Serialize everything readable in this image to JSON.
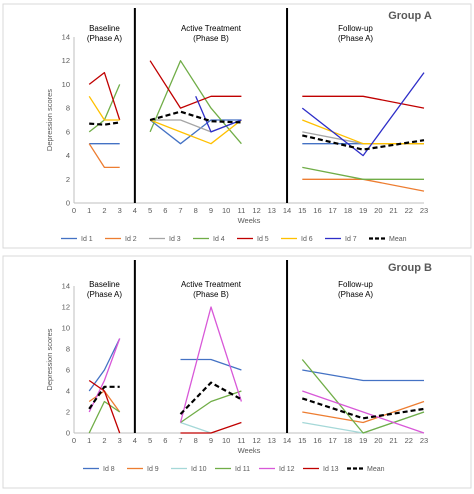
{
  "chart_data": [
    {
      "type": "line",
      "title": "Group A",
      "ylabel": "Depression scores",
      "xlabel": "Weeks",
      "ylim": [
        0,
        14
      ],
      "yticks": [
        "0",
        "2",
        "4",
        "6",
        "8",
        "10",
        "12",
        "14"
      ],
      "xlim": [
        0,
        23
      ],
      "xticks": [
        "0",
        "1",
        "2",
        "3",
        "4",
        "5",
        "6",
        "7",
        "8",
        "9",
        "10",
        "11",
        "12",
        "13",
        "14",
        "15",
        "16",
        "17",
        "18",
        "19",
        "20",
        "21",
        "22",
        "23"
      ],
      "phase_lines": [
        4,
        14
      ],
      "phases": [
        {
          "line1": "Baseline",
          "line2": "(Phase A)",
          "x": 2
        },
        {
          "line1": "Active Treatment",
          "line2": "(Phase B)",
          "x": 9
        },
        {
          "line1": "Follow-up",
          "line2": "(Phase A)",
          "x": 18.5
        }
      ],
      "grid": false,
      "legend_position": "bottom",
      "series": [
        {
          "name": "Id 1",
          "color": "#4472c4",
          "dashed": false,
          "segments": [
            [
              [
                1,
                5
              ],
              [
                2,
                5
              ],
              [
                3,
                5
              ]
            ],
            [
              [
                5,
                7
              ],
              [
                7,
                5
              ],
              [
                9,
                7
              ],
              [
                11,
                7
              ]
            ],
            [
              [
                15,
                5
              ],
              [
                19,
                5
              ],
              [
                23,
                5
              ]
            ]
          ]
        },
        {
          "name": "Id 2",
          "color": "#ed7d31",
          "dashed": false,
          "segments": [
            [
              [
                1,
                5
              ],
              [
                2,
                3
              ],
              [
                3,
                3
              ]
            ],
            [],
            [
              [
                15,
                2
              ],
              [
                19,
                2
              ],
              [
                23,
                1
              ]
            ]
          ]
        },
        {
          "name": "Id 3",
          "color": "#a5a5a5",
          "dashed": false,
          "segments": [
            [],
            [
              [
                5,
                7
              ],
              [
                7,
                7
              ],
              [
                9,
                6
              ],
              [
                11,
                7
              ]
            ],
            [
              [
                15,
                6
              ],
              [
                19,
                5
              ],
              [
                23,
                5
              ]
            ]
          ]
        },
        {
          "name": "Id 4",
          "color": "#70ad47",
          "dashed": false,
          "segments": [
            [
              [
                1,
                6
              ],
              [
                2,
                7
              ],
              [
                3,
                10
              ]
            ],
            [
              [
                5,
                6
              ],
              [
                7,
                12
              ],
              [
                9,
                8
              ],
              [
                11,
                5
              ]
            ],
            [
              [
                15,
                3
              ],
              [
                19,
                2
              ],
              [
                23,
                2
              ]
            ]
          ]
        },
        {
          "name": "Id 5",
          "color": "#c00000",
          "dashed": false,
          "segments": [
            [
              [
                1,
                10
              ],
              [
                2,
                11
              ],
              [
                3,
                7
              ]
            ],
            [
              [
                5,
                12
              ],
              [
                7,
                8
              ],
              [
                9,
                9
              ],
              [
                11,
                9
              ]
            ],
            [
              [
                15,
                9
              ],
              [
                19,
                9
              ],
              [
                23,
                8
              ]
            ]
          ]
        },
        {
          "name": "Id 6",
          "color": "#ffc000",
          "dashed": false,
          "segments": [
            [
              [
                1,
                9
              ],
              [
                2,
                7
              ],
              [
                3,
                7
              ]
            ],
            [
              [
                5,
                7
              ],
              [
                7,
                6
              ],
              [
                9,
                5
              ],
              [
                11,
                7
              ]
            ],
            [
              [
                15,
                7
              ],
              [
                19,
                5
              ],
              [
                23,
                5
              ]
            ]
          ]
        },
        {
          "name": "Id 7",
          "color": "#2e2ec8",
          "dashed": false,
          "segments": [
            [],
            [
              [
                8,
                9
              ],
              [
                9,
                6
              ],
              [
                11,
                7
              ]
            ],
            [
              [
                15,
                8
              ],
              [
                19,
                4
              ],
              [
                23,
                11
              ]
            ]
          ]
        },
        {
          "name": "Mean",
          "color": "#000000",
          "dashed": true,
          "segments": [
            [
              [
                1,
                6.7
              ],
              [
                2,
                6.6
              ],
              [
                3,
                6.8
              ]
            ],
            [
              [
                5,
                7
              ],
              [
                7,
                7.7
              ],
              [
                9,
                6.9
              ],
              [
                11,
                6.8
              ]
            ],
            [
              [
                15,
                5.7
              ],
              [
                19,
                4.5
              ],
              [
                23,
                5.3
              ]
            ]
          ]
        }
      ]
    },
    {
      "type": "line",
      "title": "Group B",
      "ylabel": "Depression scores",
      "xlabel": "Weeks",
      "ylim": [
        0,
        14
      ],
      "yticks": [
        "0",
        "2",
        "4",
        "6",
        "8",
        "10",
        "12",
        "14"
      ],
      "xlim": [
        0,
        23
      ],
      "xticks": [
        "0",
        "1",
        "2",
        "3",
        "4",
        "5",
        "6",
        "7",
        "8",
        "9",
        "10",
        "11",
        "12",
        "13",
        "14",
        "15",
        "16",
        "17",
        "18",
        "19",
        "20",
        "21",
        "22",
        "23"
      ],
      "phase_lines": [
        4,
        14
      ],
      "phases": [
        {
          "line1": "Baseline",
          "line2": "(Phase A)",
          "x": 2
        },
        {
          "line1": "Active Treatment",
          "line2": "(Phase B)",
          "x": 9
        },
        {
          "line1": "Follow-up",
          "line2": "(Phase A)",
          "x": 18.5
        }
      ],
      "grid": false,
      "legend_position": "bottom",
      "series": [
        {
          "name": "Id 8",
          "color": "#4472c4",
          "dashed": false,
          "segments": [
            [
              [
                1,
                4
              ],
              [
                2,
                6
              ],
              [
                3,
                9
              ]
            ],
            [
              [
                7,
                7
              ],
              [
                9,
                7
              ],
              [
                11,
                6
              ]
            ],
            [
              [
                15,
                6
              ],
              [
                19,
                5
              ],
              [
                23,
                5
              ]
            ]
          ]
        },
        {
          "name": "Id 9",
          "color": "#ed7d31",
          "dashed": false,
          "segments": [
            [
              [
                1,
                3
              ],
              [
                2,
                4
              ],
              [
                3,
                2
              ]
            ],
            [],
            [
              [
                15,
                2
              ],
              [
                19,
                1
              ],
              [
                23,
                3
              ]
            ]
          ]
        },
        {
          "name": "Id 10",
          "color": "#a5d8d8",
          "dashed": false,
          "segments": [
            [],
            [
              [
                7,
                1
              ],
              [
                9,
                0
              ]
            ],
            [
              [
                15,
                1
              ],
              [
                19,
                0
              ],
              [
                23,
                2
              ]
            ]
          ]
        },
        {
          "name": "Id 11",
          "color": "#70ad47",
          "dashed": false,
          "segments": [
            [
              [
                1,
                0
              ],
              [
                2,
                3
              ],
              [
                3,
                2
              ]
            ],
            [
              [
                7,
                1
              ],
              [
                9,
                3
              ],
              [
                11,
                4
              ]
            ],
            [
              [
                15,
                7
              ],
              [
                19,
                0
              ],
              [
                23,
                2
              ]
            ]
          ]
        },
        {
          "name": "Id 12",
          "color": "#d858d8",
          "dashed": false,
          "segments": [
            [
              [
                1,
                2
              ],
              [
                2,
                5
              ],
              [
                3,
                9
              ]
            ],
            [
              [
                7,
                1
              ],
              [
                9,
                12
              ],
              [
                11,
                3
              ]
            ],
            [
              [
                15,
                4
              ],
              [
                19,
                2
              ],
              [
                23,
                0
              ]
            ]
          ]
        },
        {
          "name": "Id 13",
          "color": "#c00000",
          "dashed": false,
          "segments": [
            [
              [
                1,
                5
              ],
              [
                2,
                4
              ],
              [
                3,
                0
              ]
            ],
            [
              [
                7,
                0
              ],
              [
                9,
                0
              ],
              [
                11,
                1
              ]
            ],
            []
          ]
        },
        {
          "name": "Mean",
          "color": "#000000",
          "dashed": true,
          "segments": [
            [
              [
                1,
                2.3
              ],
              [
                2,
                4.4
              ],
              [
                3,
                4.4
              ]
            ],
            [
              [
                7,
                1.8
              ],
              [
                9,
                4.8
              ],
              [
                11,
                3.2
              ]
            ],
            [
              [
                15,
                3.3
              ],
              [
                19,
                1.4
              ],
              [
                23,
                2.3
              ]
            ]
          ]
        }
      ]
    }
  ]
}
